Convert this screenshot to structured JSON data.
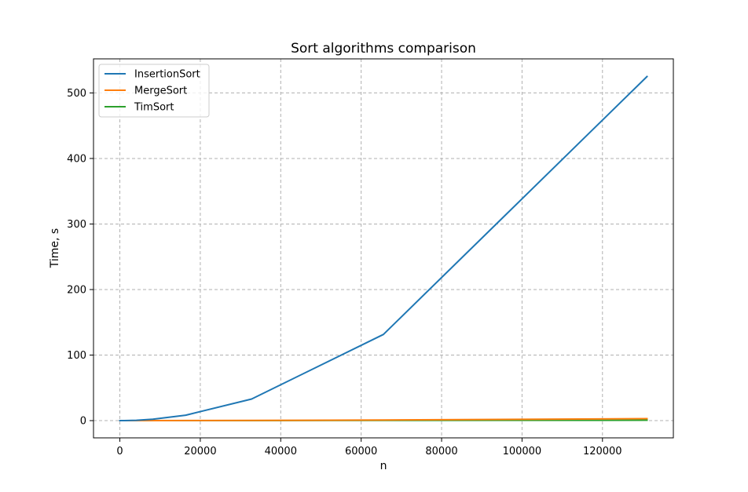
{
  "chart_data": {
    "type": "line",
    "title": "Sort algorithms comparison",
    "xlabel": "n",
    "ylabel": "Time, s",
    "xlim": [
      -6554,
      137626
    ],
    "ylim": [
      -26.3,
      552
    ],
    "xticks": [
      0,
      20000,
      40000,
      60000,
      80000,
      100000,
      120000
    ],
    "xtick_labels": [
      "0",
      "20000",
      "40000",
      "60000",
      "80000",
      "100000",
      "120000"
    ],
    "yticks": [
      0,
      100,
      200,
      300,
      400,
      500
    ],
    "ytick_labels": [
      "0",
      "100",
      "200",
      "300",
      "400",
      "500"
    ],
    "grid": true,
    "legend_position": "top-left",
    "x": [
      1,
      2,
      4,
      8,
      16,
      32,
      64,
      128,
      256,
      512,
      1024,
      2048,
      4096,
      8192,
      16384,
      32768,
      65536,
      131072
    ],
    "series": [
      {
        "name": "InsertionSort",
        "color": "#1f77b4",
        "values": [
          0,
          0,
          0,
          0,
          0,
          0,
          0,
          0,
          0,
          0.01,
          0.03,
          0.13,
          0.5,
          2.1,
          8.3,
          33,
          131.5,
          525
        ]
      },
      {
        "name": "MergeSort",
        "color": "#ff7f0e",
        "values": [
          0,
          0,
          0,
          0,
          0,
          0,
          0,
          0,
          0,
          0,
          0,
          0.01,
          0.03,
          0.06,
          0.13,
          0.3,
          1.0,
          3.0
        ]
      },
      {
        "name": "TimSort",
        "color": "#2ca02c",
        "values": [
          0,
          0,
          0,
          0,
          0,
          0,
          0,
          0,
          0,
          0,
          0,
          0,
          0.01,
          0.02,
          0.05,
          0.1,
          0.3,
          0.6
        ]
      }
    ]
  }
}
